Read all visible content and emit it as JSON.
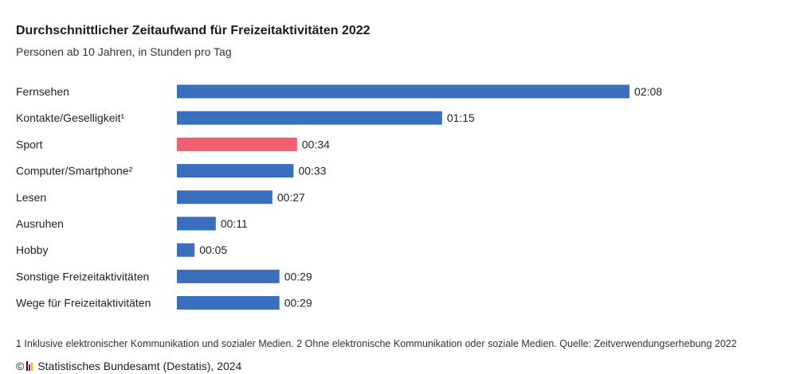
{
  "chart_data": {
    "type": "bar",
    "orientation": "horizontal",
    "title": "Durchschnittlicher Zeitaufwand für Freizeitaktivitäten 2022",
    "subtitle": "Personen ab 10 Jahren, in Stunden pro Tag",
    "unit": "hh:mm",
    "categories": [
      "Fernsehen",
      "Kontakte/Geselligkeit¹",
      "Sport",
      "Computer/Smartphone²",
      "Lesen",
      "Ausruhen",
      "Hobby",
      "Sonstige Freizeitaktivitäten",
      "Wege für Freizeitaktivitäten"
    ],
    "labels": [
      "02:08",
      "01:15",
      "00:34",
      "00:33",
      "00:27",
      "00:11",
      "00:05",
      "00:29",
      "00:29"
    ],
    "values_minutes": [
      128,
      75,
      34,
      33,
      27,
      11,
      5,
      29,
      29
    ],
    "highlight_index": 2,
    "colors": {
      "bar": "#3a6fbd",
      "highlight": "#f0606f"
    },
    "xlim_minutes": [
      0,
      128
    ],
    "grid": false,
    "legend": "none"
  },
  "footnote": "1 Inklusive elektronischer Kommunikation und sozialer Medien. 2 Ohne elektronische Kommunikation oder soziale Medien. Quelle: Zeitverwendungserhebung 2022",
  "source": {
    "copyright_symbol": "©",
    "text": "Statistisches Bundesamt (Destatis), 2024",
    "logo_icon": "destatis-logo-icon",
    "logo_colors": [
      "#1a1a1a",
      "#d9001b",
      "#f2b700"
    ]
  }
}
